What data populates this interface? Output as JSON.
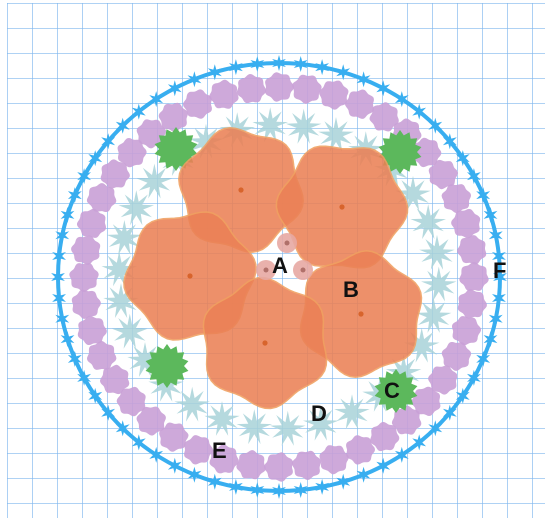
{
  "labels": {
    "a": "A",
    "b": "B",
    "c": "C",
    "d": "D",
    "e": "E",
    "f": "F"
  },
  "colors": {
    "background": "#ffffff",
    "grid": "#7fb7ee",
    "outer_ring_blue": "#38aef0",
    "lilac_circles": "#c9a0d6",
    "pale_teal_clusters": "#a8d2d8",
    "green_shrubs": "#5cb85c",
    "orange_canopies": "#eb8156",
    "orange_canopy_edge": "#f0a060",
    "center_dots": "#e7a9a3",
    "label_text": "#111111"
  },
  "legend_items": [
    {
      "id": "A",
      "icon": "small-pink-dot-cluster"
    },
    {
      "id": "B",
      "icon": "large-orange-canopy"
    },
    {
      "id": "C",
      "icon": "green-shrub"
    },
    {
      "id": "D",
      "icon": "pale-teal-spiky-cluster"
    },
    {
      "id": "E",
      "icon": "lilac-circle"
    },
    {
      "id": "F",
      "icon": "blue-star-ring"
    }
  ]
}
